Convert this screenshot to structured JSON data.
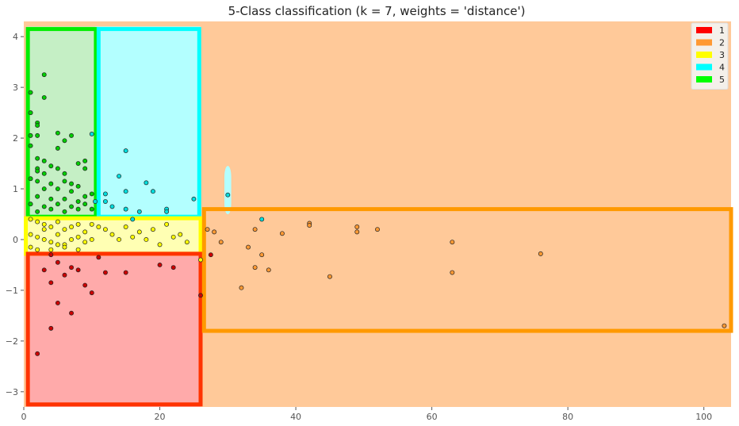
{
  "chart_data": {
    "type": "scatter",
    "title": "5-Class classification (k = 7, weights = 'distance')",
    "xlim": [
      0,
      104
    ],
    "ylim": [
      -3.3,
      4.3
    ],
    "xticks": [
      0,
      20,
      40,
      60,
      80,
      100
    ],
    "yticks": [
      -3,
      -2,
      -1,
      0,
      1,
      2,
      3,
      4
    ],
    "grid": false,
    "legend_position": "top-right",
    "legend": [
      {
        "label": "1",
        "color": "#ff0000"
      },
      {
        "label": "2",
        "color": "#ff9933"
      },
      {
        "label": "3",
        "color": "#ffff00"
      },
      {
        "label": "4",
        "color": "#00ffff"
      },
      {
        "label": "5",
        "color": "#00ff00"
      }
    ],
    "background_regions": [
      {
        "class": "2",
        "x": [
          0,
          104
        ],
        "y": [
          -3.3,
          4.3
        ],
        "color": "#ffc999"
      },
      {
        "class": "5",
        "x": [
          0.5,
          10.5
        ],
        "y": [
          0.45,
          4.2
        ],
        "color": "#c5efc5"
      },
      {
        "class": "4",
        "x": [
          10.5,
          26
        ],
        "y": [
          0.45,
          4.2
        ],
        "color": "#b3ffff"
      },
      {
        "class": "3",
        "x": [
          0,
          26
        ],
        "y": [
          -0.3,
          0.45
        ],
        "color": "#ffffb3"
      },
      {
        "class": "1",
        "x": [
          0.5,
          26
        ],
        "y": [
          -3.3,
          -0.3
        ],
        "color": "#ffaaaa"
      },
      {
        "class": "4",
        "x": [
          29.5,
          30.5
        ],
        "y": [
          0.5,
          1.45
        ],
        "color": "#b3ffff"
      }
    ],
    "highlight_boxes": [
      {
        "class": "5",
        "x": [
          0.6,
          10.6
        ],
        "y": [
          0.45,
          4.15
        ],
        "color": "#00ee00"
      },
      {
        "class": "4",
        "x": [
          11.0,
          25.8
        ],
        "y": [
          0.45,
          4.15
        ],
        "color": "#00ffff"
      },
      {
        "class": "3",
        "x": [
          0.3,
          26.0
        ],
        "y": [
          -0.28,
          0.42
        ],
        "color": "#ffff00"
      },
      {
        "class": "1",
        "x": [
          0.6,
          26.0
        ],
        "y": [
          -3.25,
          -0.28
        ],
        "color": "#ff3300"
      },
      {
        "class": "2",
        "x": [
          26.5,
          104
        ],
        "y": [
          -1.8,
          0.6
        ],
        "color": "#ff9900"
      }
    ],
    "series": [
      {
        "name": "1",
        "color": "#cc0000",
        "points": [
          [
            4,
            -0.3
          ],
          [
            5,
            -0.45
          ],
          [
            7,
            -0.55
          ],
          [
            4,
            -0.85
          ],
          [
            6,
            -0.7
          ],
          [
            8,
            -0.6
          ],
          [
            9,
            -0.9
          ],
          [
            5,
            -1.25
          ],
          [
            7,
            -1.45
          ],
          [
            4,
            -1.75
          ],
          [
            2,
            -2.25
          ],
          [
            10,
            -1.05
          ],
          [
            12,
            -0.65
          ],
          [
            15,
            -0.65
          ],
          [
            20,
            -0.5
          ],
          [
            22,
            -0.55
          ],
          [
            26,
            -1.1
          ],
          [
            27.5,
            -0.3
          ],
          [
            3,
            -0.6
          ],
          [
            11,
            -0.35
          ]
        ]
      },
      {
        "name": "2",
        "color": "#ff9933",
        "points": [
          [
            27,
            0.2
          ],
          [
            28,
            0.15
          ],
          [
            29,
            -0.05
          ],
          [
            32,
            -0.95
          ],
          [
            33,
            -0.15
          ],
          [
            34,
            -0.55
          ],
          [
            34,
            0.2
          ],
          [
            35,
            -0.3
          ],
          [
            36,
            -0.6
          ],
          [
            38,
            0.12
          ],
          [
            42,
            0.32
          ],
          [
            42,
            0.28
          ],
          [
            45,
            -0.73
          ],
          [
            49,
            0.25
          ],
          [
            49,
            0.15
          ],
          [
            52,
            0.2
          ],
          [
            63,
            -0.05
          ],
          [
            63,
            -0.65
          ],
          [
            76,
            -0.28
          ],
          [
            103,
            -1.7
          ]
        ]
      },
      {
        "name": "3",
        "color": "#ffff00",
        "points": [
          [
            1,
            0.4
          ],
          [
            2,
            0.35
          ],
          [
            3,
            0.3
          ],
          [
            4,
            0.25
          ],
          [
            5,
            0.35
          ],
          [
            6,
            0.2
          ],
          [
            7,
            0.25
          ],
          [
            8,
            0.3
          ],
          [
            9,
            0.15
          ],
          [
            10,
            0.3
          ],
          [
            11,
            0.25
          ],
          [
            12,
            0.2
          ],
          [
            1,
            0.1
          ],
          [
            2,
            0.05
          ],
          [
            3,
            0.0
          ],
          [
            4,
            -0.05
          ],
          [
            5,
            0.1
          ],
          [
            6,
            -0.1
          ],
          [
            7,
            0.0
          ],
          [
            8,
            0.05
          ],
          [
            9,
            -0.05
          ],
          [
            10,
            0.0
          ],
          [
            1,
            -0.15
          ],
          [
            2,
            -0.2
          ],
          [
            4,
            -0.2
          ],
          [
            6,
            -0.15
          ],
          [
            8,
            -0.2
          ],
          [
            13,
            0.1
          ],
          [
            14,
            0.0
          ],
          [
            16,
            0.05
          ],
          [
            17,
            0.15
          ],
          [
            18,
            0.0
          ],
          [
            20,
            -0.1
          ],
          [
            22,
            0.05
          ],
          [
            24,
            -0.05
          ],
          [
            15,
            0.25
          ],
          [
            19,
            0.2
          ],
          [
            21,
            0.3
          ],
          [
            23,
            0.1
          ],
          [
            26,
            -0.4
          ],
          [
            3,
            0.2
          ],
          [
            5,
            -0.1
          ]
        ]
      },
      {
        "name": "4",
        "color": "#00dddd",
        "points": [
          [
            10,
            2.08
          ],
          [
            15,
            1.75
          ],
          [
            14,
            1.25
          ],
          [
            18,
            1.12
          ],
          [
            19,
            0.95
          ],
          [
            15,
            0.95
          ],
          [
            12,
            0.9
          ],
          [
            12,
            0.75
          ],
          [
            13,
            0.65
          ],
          [
            15,
            0.6
          ],
          [
            17,
            0.55
          ],
          [
            21,
            0.6
          ],
          [
            21,
            0.55
          ],
          [
            25,
            0.8
          ],
          [
            30,
            0.88
          ],
          [
            35,
            0.4
          ],
          [
            16,
            0.4
          ],
          [
            10.5,
            0.75
          ]
        ]
      },
      {
        "name": "5",
        "color": "#00cc00",
        "points": [
          [
            3,
            3.25
          ],
          [
            3,
            2.8
          ],
          [
            1,
            2.9
          ],
          [
            1,
            2.5
          ],
          [
            2,
            2.3
          ],
          [
            2,
            2.25
          ],
          [
            2,
            2.05
          ],
          [
            5,
            2.1
          ],
          [
            6,
            1.95
          ],
          [
            7,
            2.05
          ],
          [
            5,
            1.8
          ],
          [
            2,
            1.6
          ],
          [
            3,
            1.55
          ],
          [
            4,
            1.45
          ],
          [
            2,
            1.4
          ],
          [
            2,
            1.35
          ],
          [
            3,
            1.3
          ],
          [
            5,
            1.4
          ],
          [
            6,
            1.3
          ],
          [
            1,
            1.2
          ],
          [
            2,
            1.15
          ],
          [
            4,
            1.1
          ],
          [
            6,
            1.15
          ],
          [
            8,
            1.5
          ],
          [
            9,
            1.55
          ],
          [
            9,
            1.4
          ],
          [
            3,
            1.0
          ],
          [
            5,
            1.0
          ],
          [
            7,
            0.95
          ],
          [
            8,
            1.05
          ],
          [
            9,
            0.85
          ],
          [
            10,
            0.9
          ],
          [
            2,
            0.85
          ],
          [
            4,
            0.8
          ],
          [
            6,
            0.8
          ],
          [
            8,
            0.75
          ],
          [
            1,
            0.7
          ],
          [
            3,
            0.65
          ],
          [
            5,
            0.7
          ],
          [
            7,
            0.65
          ],
          [
            9,
            0.7
          ],
          [
            10,
            0.6
          ],
          [
            2,
            0.55
          ],
          [
            4,
            0.6
          ],
          [
            6,
            0.55
          ],
          [
            8,
            0.6
          ],
          [
            1,
            1.85
          ],
          [
            1,
            2.05
          ],
          [
            7,
            1.1
          ]
        ]
      }
    ]
  }
}
